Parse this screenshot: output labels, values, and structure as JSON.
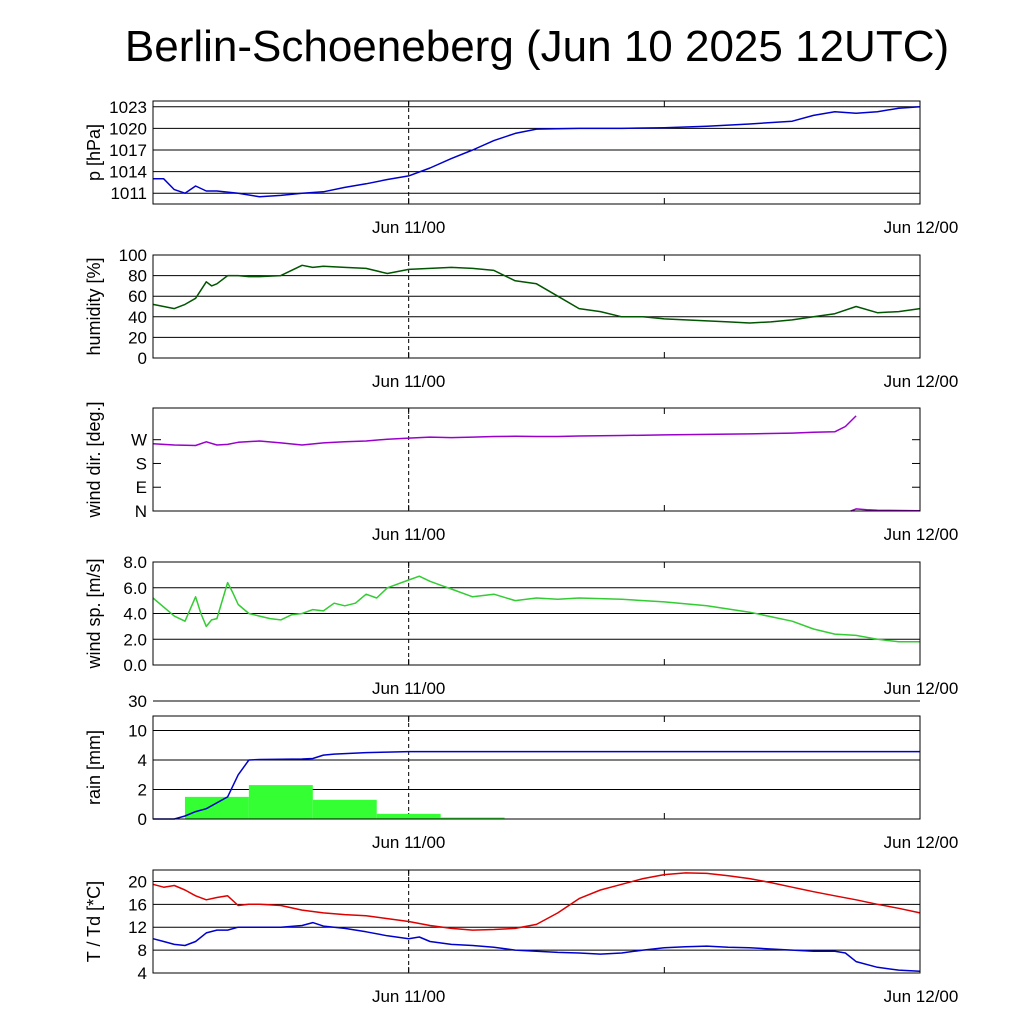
{
  "title": "Berlin-Schoeneberg (Jun 10 2025 12UTC)",
  "chart_data": [
    {
      "id": "pressure",
      "type": "line",
      "ylabel": "p [hPa]",
      "yticks": [
        "1011",
        "1014",
        "1017",
        "1020",
        "1023"
      ],
      "xticks": [
        "Jun 11/00",
        "Jun 12/00"
      ],
      "color": "#0000cc",
      "x_hours": [
        0,
        1,
        2,
        3,
        4,
        5,
        6,
        8,
        10,
        12,
        14,
        16,
        18,
        20,
        22,
        24,
        26,
        28,
        30,
        32,
        34,
        36,
        40,
        44,
        48,
        52,
        56,
        60,
        62,
        64,
        66,
        68,
        70,
        72
      ],
      "values": [
        1013,
        1013,
        1011.5,
        1011,
        1012,
        1011.3,
        1011.3,
        1011,
        1010.5,
        1010.7,
        1011,
        1011.2,
        1011.8,
        1012.3,
        1012.9,
        1013.4,
        1014.5,
        1015.8,
        1017,
        1018.3,
        1019.3,
        1019.9,
        1020,
        1020,
        1020.1,
        1020.3,
        1020.6,
        1021,
        1021.8,
        1022.3,
        1022.1,
        1022.3,
        1022.8,
        1023
      ],
      "ylim": [
        1009.5,
        1023.8
      ],
      "grid": true
    },
    {
      "id": "humidity",
      "type": "line",
      "ylabel": "humidity [%]",
      "yticks": [
        "0",
        "20",
        "40",
        "60",
        "80",
        "100"
      ],
      "xticks": [
        "Jun 11/00",
        "Jun 12/00"
      ],
      "color": "#005500",
      "x_hours": [
        0,
        1,
        2,
        3,
        4,
        5,
        5.5,
        6,
        7,
        8,
        9,
        10,
        12,
        14,
        15,
        16,
        18,
        20,
        22,
        24,
        26,
        28,
        30,
        32,
        34,
        36,
        38,
        40,
        42,
        44,
        46,
        48,
        50,
        52,
        54,
        56,
        58,
        60,
        62,
        64,
        66,
        68,
        70,
        72
      ],
      "values": [
        52,
        50,
        48,
        52,
        58,
        74,
        70,
        72,
        80,
        80,
        79,
        79,
        80,
        90,
        88,
        89,
        88,
        87,
        82,
        86,
        87,
        88,
        87,
        85,
        75,
        72,
        60,
        48,
        45,
        40,
        40,
        38,
        37,
        36,
        35,
        34,
        35,
        37,
        40,
        43,
        50,
        44,
        45,
        48
      ],
      "ylim": [
        0,
        100
      ],
      "grid": true
    },
    {
      "id": "wind-direction",
      "type": "line",
      "ylabel": "wind dir. [deg.]",
      "yticks": [
        "N",
        "E",
        "S",
        "W"
      ],
      "xticks": [
        "Jun 11/00",
        "Jun 12/00"
      ],
      "color": "#9900cc",
      "x_hours": [
        0,
        2,
        4,
        5,
        6,
        7,
        8,
        10,
        12,
        14,
        16,
        18,
        20,
        22,
        24,
        26,
        28,
        30,
        32,
        34,
        36,
        38,
        40,
        44,
        48,
        52,
        56,
        60,
        62,
        64,
        65,
        66
      ],
      "values": [
        255,
        250,
        248,
        262,
        250,
        252,
        260,
        265,
        258,
        250,
        258,
        262,
        265,
        272,
        276,
        280,
        278,
        280,
        282,
        283,
        282,
        282,
        284,
        286,
        288,
        290,
        292,
        295,
        298,
        300,
        320,
        360
      ],
      "series2_x_hours": [
        65.5,
        66,
        67,
        68,
        70,
        72
      ],
      "series2_values": [
        0,
        8,
        5,
        3,
        2,
        1
      ],
      "ylim": [
        0,
        390
      ],
      "grid": false
    },
    {
      "id": "wind-speed",
      "type": "line",
      "ylabel": "wind sp. [m/s]",
      "yticks": [
        "0.0",
        "2.0",
        "4.0",
        "6.0",
        "8.0"
      ],
      "xticks": [
        "Jun 11/00",
        "Jun 12/00"
      ],
      "color": "#33cc33",
      "x_hours": [
        0,
        1,
        2,
        3,
        4,
        4.5,
        5,
        5.5,
        6,
        7,
        7.5,
        8,
        9,
        10,
        11,
        12,
        13,
        14,
        15,
        16,
        17,
        18,
        19,
        20,
        21,
        22,
        24,
        25,
        26,
        27,
        28,
        30,
        32,
        34,
        36,
        38,
        40,
        44,
        48,
        52,
        56,
        60,
        62,
        64,
        66,
        68,
        70,
        72
      ],
      "values": [
        5.2,
        4.5,
        3.8,
        3.4,
        5.3,
        4.0,
        3.0,
        3.5,
        3.6,
        6.4,
        5.6,
        4.7,
        4.0,
        3.8,
        3.6,
        3.5,
        3.9,
        4.0,
        4.3,
        4.2,
        4.8,
        4.6,
        4.8,
        5.5,
        5.2,
        6.0,
        6.6,
        6.9,
        6.5,
        6.2,
        5.9,
        5.3,
        5.5,
        5.0,
        5.2,
        5.1,
        5.2,
        5.1,
        4.9,
        4.6,
        4.1,
        3.4,
        2.8,
        2.4,
        2.3,
        2.0,
        1.8,
        1.8
      ],
      "ylim": [
        0,
        8
      ],
      "grid": true
    },
    {
      "id": "rain",
      "type": "bar",
      "ylabel": "rain [mm]",
      "yticks": [
        "0",
        "2",
        "4",
        "10",
        "30"
      ],
      "xticks": [
        "Jun 11/00",
        "Jun 12/00"
      ],
      "bar_color": "#33ff33",
      "line_color": "#0000cc",
      "bar_start_hours": [
        3,
        9,
        15,
        21,
        27
      ],
      "bar_end_hours": [
        9,
        15,
        21,
        27,
        33
      ],
      "bar_values": [
        1.5,
        2.3,
        1.3,
        0.35,
        0.1
      ],
      "cumulative_x_hours": [
        0,
        1,
        2,
        3,
        4,
        5,
        7,
        8,
        9,
        10,
        14,
        15,
        16,
        17,
        18,
        20,
        22,
        24,
        30,
        40,
        50,
        60,
        72
      ],
      "cumulative_values": [
        0,
        0,
        0,
        0.2,
        0.5,
        0.7,
        1.5,
        3.0,
        4.0,
        4.1,
        4.2,
        4.3,
        5.0,
        5.2,
        5.3,
        5.5,
        5.6,
        5.7,
        5.7,
        5.7,
        5.7,
        5.7,
        5.7
      ],
      "grid": true
    },
    {
      "id": "temperature",
      "type": "line",
      "ylabel": "T / Td [*C]",
      "yticks": [
        "4",
        "8",
        "12",
        "16",
        "20"
      ],
      "xticks": [
        "Jun 11/00",
        "Jun 12/00"
      ],
      "ylim": [
        4,
        22
      ],
      "grid": true,
      "series": [
        {
          "color": "#dd0000",
          "x_hours": [
            0,
            1,
            2,
            3,
            4,
            5,
            6,
            7,
            8,
            9,
            10,
            12,
            14,
            16,
            18,
            20,
            22,
            24,
            26,
            28,
            30,
            32,
            34,
            36,
            38,
            40,
            42,
            44,
            46,
            48,
            50,
            52,
            54,
            56,
            58,
            60,
            62,
            64,
            66,
            68,
            70,
            72
          ],
          "values": [
            19.5,
            19.0,
            19.3,
            18.5,
            17.5,
            16.8,
            17.2,
            17.5,
            15.8,
            16.0,
            16.0,
            15.8,
            15.0,
            14.5,
            14.2,
            14.0,
            13.5,
            13.0,
            12.3,
            11.8,
            11.5,
            11.6,
            11.8,
            12.5,
            14.5,
            17.0,
            18.5,
            19.5,
            20.5,
            21.2,
            21.5,
            21.4,
            21.0,
            20.5,
            19.8,
            19.0,
            18.2,
            17.5,
            16.8,
            16.0,
            15.3,
            14.5
          ]
        },
        {
          "color": "#0000cc",
          "x_hours": [
            0,
            1,
            2,
            3,
            4,
            5,
            6,
            7,
            8,
            9,
            10,
            12,
            14,
            15,
            16,
            18,
            20,
            22,
            24,
            25,
            26,
            28,
            30,
            32,
            34,
            36,
            38,
            40,
            42,
            44,
            46,
            48,
            50,
            52,
            54,
            56,
            58,
            60,
            62,
            64,
            65,
            66,
            68,
            70,
            72
          ],
          "values": [
            10.0,
            9.5,
            9.0,
            8.8,
            9.5,
            11.0,
            11.5,
            11.5,
            12.0,
            12.0,
            12.0,
            12.0,
            12.3,
            12.8,
            12.2,
            11.8,
            11.2,
            10.5,
            10.0,
            10.3,
            9.5,
            9.0,
            8.8,
            8.5,
            8.0,
            7.8,
            7.6,
            7.5,
            7.3,
            7.5,
            8.0,
            8.4,
            8.6,
            8.7,
            8.5,
            8.4,
            8.2,
            8.0,
            7.8,
            7.8,
            7.5,
            6.0,
            5.0,
            4.5,
            4.3
          ]
        }
      ]
    }
  ]
}
